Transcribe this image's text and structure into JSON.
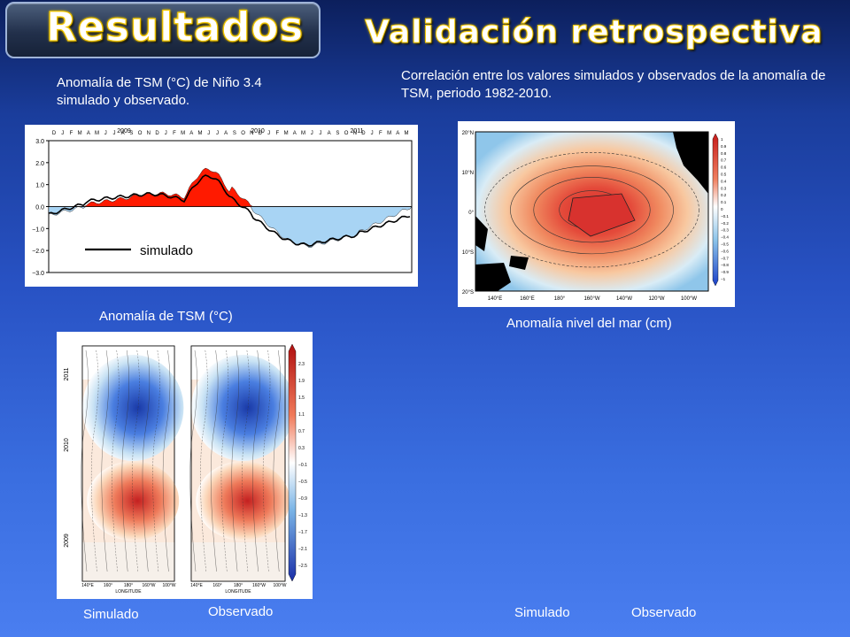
{
  "header": {
    "badge_title": "Resultados",
    "section_title": "Validación retrospectiva"
  },
  "notes": {
    "left_top": "Anomalía de TSM (°C) de  Niño 3.4 simulado y observado.",
    "right_top": "Correlación entre los valores simulados y observados de la anomalía de TSM, periodo 1982-2010."
  },
  "timeseries": {
    "years": [
      "2009",
      "2010",
      "2011"
    ],
    "months": [
      "D",
      "J",
      "F",
      "M",
      "A",
      "M",
      "J",
      "J",
      "A",
      "S",
      "O",
      "N",
      "D",
      "J",
      "F",
      "M",
      "A",
      "M",
      "J",
      "J",
      "A",
      "S",
      "O",
      "N",
      "D",
      "J",
      "F",
      "M",
      "A",
      "M",
      "J",
      "J",
      "A",
      "S",
      "O",
      "N",
      "D",
      "J",
      "F",
      "M",
      "A",
      "M"
    ],
    "y_ticks": [
      "3.0",
      "2.0",
      "1.0",
      "0.0",
      "−1.0",
      "−2.0",
      "−3.0"
    ],
    "legend_label": "simulado",
    "colors": {
      "positive": "#ff1a00",
      "negative": "#a8d4f4",
      "line": "#000000"
    }
  },
  "correlation_map": {
    "lat_labels": [
      "20°N",
      "10°N",
      "0°",
      "10°S",
      "20°S"
    ],
    "lon_labels": [
      "140°E",
      "160°E",
      "180°",
      "160°W",
      "140°W",
      "120°W",
      "100°W"
    ],
    "colorbar": [
      "1",
      "0.9",
      "0.8",
      "0.7",
      "0.6",
      "0.5",
      "0.4",
      "0.3",
      "0.2",
      "0.1",
      "0",
      "−0.1",
      "−0.2",
      "−0.3",
      "−0.4",
      "−0.5",
      "−0.6",
      "−0.7",
      "−0.8",
      "−0.9",
      "−1"
    ]
  },
  "hovmoller": {
    "year_labels": [
      "2011",
      "2010",
      "2009"
    ],
    "lon_labels": [
      "140°E",
      "160°",
      "180°",
      "160°W",
      "100°W"
    ],
    "axis_label": "LONGITUDE",
    "colorbar": [
      "2.3",
      "1.9",
      "1.5",
      "1.1",
      "0.7",
      "0.3",
      "−0.1",
      "−0.5",
      "−0.9",
      "−1.3",
      "−1.7",
      "−2.1",
      "−2.5"
    ]
  },
  "captions": {
    "tsm": "Anomalía de TSM (°C)",
    "sea_level": "Anomalía nivel del mar (cm)",
    "simulado_left": "Simulado",
    "observado_left": "Observado",
    "simulado_right": "Simulado",
    "observado_right": "Observado"
  }
}
